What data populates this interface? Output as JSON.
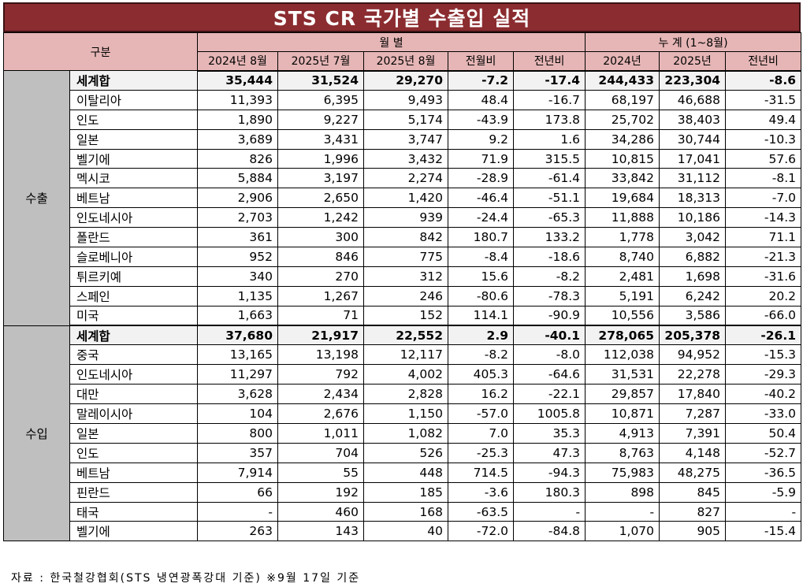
{
  "title": "STS CR 국가별 수출입 실적",
  "header": {
    "gubun": "구분",
    "monthly": "월        별",
    "cumulative": "누        계 (1~8월)",
    "monthly_cols": [
      "2024년 8월",
      "2025년 7월",
      "2025년 8월",
      "전월비",
      "전년비"
    ],
    "cum_cols": [
      "2024년",
      "2025년",
      "전년비"
    ]
  },
  "export": {
    "label": "수출",
    "rows": [
      {
        "name": "세계합",
        "v": [
          "35,444",
          "31,524",
          "29,270",
          "-7.2",
          "-17.4",
          "244,433",
          "223,304",
          "-8.6"
        ]
      },
      {
        "name": "이탈리아",
        "v": [
          "11,393",
          "6,395",
          "9,493",
          "48.4",
          "-16.7",
          "68,197",
          "46,688",
          "-31.5"
        ]
      },
      {
        "name": "인도",
        "v": [
          "1,890",
          "9,227",
          "5,174",
          "-43.9",
          "173.8",
          "25,702",
          "38,403",
          "49.4"
        ]
      },
      {
        "name": "일본",
        "v": [
          "3,689",
          "3,431",
          "3,747",
          "9.2",
          "1.6",
          "34,286",
          "30,744",
          "-10.3"
        ]
      },
      {
        "name": "벨기에",
        "v": [
          "826",
          "1,996",
          "3,432",
          "71.9",
          "315.5",
          "10,815",
          "17,041",
          "57.6"
        ]
      },
      {
        "name": "멕시코",
        "v": [
          "5,884",
          "3,197",
          "2,274",
          "-28.9",
          "-61.4",
          "33,842",
          "31,112",
          "-8.1"
        ]
      },
      {
        "name": "베트남",
        "v": [
          "2,906",
          "2,650",
          "1,420",
          "-46.4",
          "-51.1",
          "19,684",
          "18,313",
          "-7.0"
        ]
      },
      {
        "name": "인도네시아",
        "v": [
          "2,703",
          "1,242",
          "939",
          "-24.4",
          "-65.3",
          "11,888",
          "10,186",
          "-14.3"
        ]
      },
      {
        "name": "폴란드",
        "v": [
          "361",
          "300",
          "842",
          "180.7",
          "133.2",
          "1,778",
          "3,042",
          "71.1"
        ]
      },
      {
        "name": "슬로베니아",
        "v": [
          "952",
          "846",
          "775",
          "-8.4",
          "-18.6",
          "8,740",
          "6,882",
          "-21.3"
        ]
      },
      {
        "name": "튀르키예",
        "v": [
          "340",
          "270",
          "312",
          "15.6",
          "-8.2",
          "2,481",
          "1,698",
          "-31.6"
        ]
      },
      {
        "name": "스페인",
        "v": [
          "1,135",
          "1,267",
          "246",
          "-80.6",
          "-78.3",
          "5,191",
          "6,242",
          "20.2"
        ]
      },
      {
        "name": "미국",
        "v": [
          "1,663",
          "71",
          "152",
          "114.1",
          "-90.9",
          "10,556",
          "3,586",
          "-66.0"
        ]
      }
    ]
  },
  "import": {
    "label": "수입",
    "rows": [
      {
        "name": "세계합",
        "v": [
          "37,680",
          "21,917",
          "22,552",
          "2.9",
          "-40.1",
          "278,065",
          "205,378",
          "-26.1"
        ]
      },
      {
        "name": "중국",
        "v": [
          "13,165",
          "13,198",
          "12,117",
          "-8.2",
          "-8.0",
          "112,038",
          "94,952",
          "-15.3"
        ]
      },
      {
        "name": "인도네시아",
        "v": [
          "11,297",
          "792",
          "4,002",
          "405.3",
          "-64.6",
          "31,531",
          "22,278",
          "-29.3"
        ]
      },
      {
        "name": "대만",
        "v": [
          "3,628",
          "2,434",
          "2,828",
          "16.2",
          "-22.1",
          "29,857",
          "17,840",
          "-40.2"
        ]
      },
      {
        "name": "말레이시아",
        "v": [
          "104",
          "2,676",
          "1,150",
          "-57.0",
          "1005.8",
          "10,871",
          "7,287",
          "-33.0"
        ]
      },
      {
        "name": "일본",
        "v": [
          "800",
          "1,011",
          "1,082",
          "7.0",
          "35.3",
          "4,913",
          "7,391",
          "50.4"
        ]
      },
      {
        "name": "인도",
        "v": [
          "357",
          "704",
          "526",
          "-25.3",
          "47.3",
          "8,763",
          "4,148",
          "-52.7"
        ]
      },
      {
        "name": "베트남",
        "v": [
          "7,914",
          "55",
          "448",
          "714.5",
          "-94.3",
          "75,983",
          "48,275",
          "-36.5"
        ]
      },
      {
        "name": "핀란드",
        "v": [
          "66",
          "192",
          "185",
          "-3.6",
          "180.3",
          "898",
          "845",
          "-5.9"
        ]
      },
      {
        "name": "태국",
        "v": [
          "-",
          "460",
          "168",
          "-63.5",
          "-",
          "-",
          "827",
          "-"
        ]
      },
      {
        "name": "벨기에",
        "v": [
          "263",
          "143",
          "40",
          "-72.0",
          "-84.8",
          "1,070",
          "905",
          "-15.4"
        ]
      }
    ]
  },
  "footnote": "자료 : 한국철강협회(STS 냉연광폭강대 기준) ※9월 17일 기준"
}
